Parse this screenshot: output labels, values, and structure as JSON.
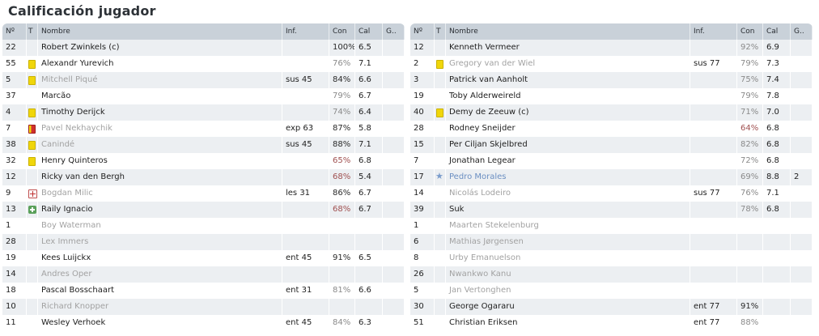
{
  "title": "Calificación jugador",
  "columns": {
    "num": "Nº",
    "t": "T",
    "name": "Nombre",
    "inf": "Inf.",
    "con": "Con",
    "cal": "Cal",
    "g": "G.."
  },
  "left": [
    {
      "num": "22",
      "icon": "",
      "name": "Robert Zwinkels (c)",
      "inf": "",
      "con": "100%",
      "cal": "6.5",
      "g": "",
      "style": "",
      "con_style": "hi"
    },
    {
      "num": "55",
      "icon": "yellow-card",
      "name": "Alexandr Yurevich",
      "inf": "",
      "con": "76%",
      "cal": "7.1",
      "g": "",
      "style": "",
      "con_style": ""
    },
    {
      "num": "5",
      "icon": "yellow-card",
      "name": "Mitchell Piqué",
      "inf": "sus 45",
      "con": "84%",
      "cal": "6.6",
      "g": "",
      "style": "dim",
      "con_style": "hi"
    },
    {
      "num": "37",
      "icon": "",
      "name": "Marcão",
      "inf": "",
      "con": "79%",
      "cal": "6.7",
      "g": "",
      "style": "",
      "con_style": ""
    },
    {
      "num": "4",
      "icon": "yellow-card",
      "name": "Timothy Derijck",
      "inf": "",
      "con": "74%",
      "cal": "6.4",
      "g": "",
      "style": "",
      "con_style": ""
    },
    {
      "num": "7",
      "icon": "red-card",
      "name": "Pavel Nekhaychik",
      "inf": "exp 63",
      "con": "87%",
      "cal": "5.8",
      "g": "",
      "style": "dim",
      "con_style": "hi"
    },
    {
      "num": "38",
      "icon": "yellow-card",
      "name": "Canindé",
      "inf": "sus 45",
      "con": "88%",
      "cal": "7.1",
      "g": "",
      "style": "dim",
      "con_style": "hi"
    },
    {
      "num": "32",
      "icon": "yellow-card",
      "name": "Henry Quinteros",
      "inf": "",
      "con": "65%",
      "cal": "6.8",
      "g": "",
      "style": "",
      "con_style": "low"
    },
    {
      "num": "12",
      "icon": "",
      "name": "Ricky van den Bergh",
      "inf": "",
      "con": "68%",
      "cal": "5.4",
      "g": "",
      "style": "",
      "con_style": "low"
    },
    {
      "num": "9",
      "icon": "injury",
      "name": "Bogdan Milic",
      "inf": "les 31",
      "con": "86%",
      "cal": "6.7",
      "g": "",
      "style": "dim",
      "con_style": "hi"
    },
    {
      "num": "13",
      "icon": "sub-in",
      "name": "Raily Ignacio",
      "inf": "",
      "con": "68%",
      "cal": "6.7",
      "g": "",
      "style": "",
      "con_style": "low"
    },
    {
      "num": "1",
      "icon": "",
      "name": "Boy Waterman",
      "inf": "",
      "con": "",
      "cal": "",
      "g": "",
      "style": "dim",
      "con_style": ""
    },
    {
      "num": "28",
      "icon": "",
      "name": "Lex Immers",
      "inf": "",
      "con": "",
      "cal": "",
      "g": "",
      "style": "dim",
      "con_style": ""
    },
    {
      "num": "19",
      "icon": "",
      "name": "Kees Luijckx",
      "inf": "ent 45",
      "con": "91%",
      "cal": "6.5",
      "g": "",
      "style": "",
      "con_style": "hi"
    },
    {
      "num": "14",
      "icon": "",
      "name": "Andres Oper",
      "inf": "",
      "con": "",
      "cal": "",
      "g": "",
      "style": "dim",
      "con_style": ""
    },
    {
      "num": "18",
      "icon": "",
      "name": "Pascal Bosschaart",
      "inf": "ent 31",
      "con": "81%",
      "cal": "6.6",
      "g": "",
      "style": "",
      "con_style": ""
    },
    {
      "num": "10",
      "icon": "",
      "name": "Richard Knopper",
      "inf": "",
      "con": "",
      "cal": "",
      "g": "",
      "style": "dim",
      "con_style": ""
    },
    {
      "num": "11",
      "icon": "",
      "name": "Wesley Verhoek",
      "inf": "ent 45",
      "con": "84%",
      "cal": "6.3",
      "g": "",
      "style": "",
      "con_style": ""
    }
  ],
  "right": [
    {
      "num": "12",
      "icon": "",
      "name": "Kenneth Vermeer",
      "inf": "",
      "con": "92%",
      "cal": "6.9",
      "g": "",
      "style": "",
      "con_style": ""
    },
    {
      "num": "2",
      "icon": "yellow-card",
      "name": "Gregory van der Wiel",
      "inf": "sus 77",
      "con": "79%",
      "cal": "7.3",
      "g": "",
      "style": "dim",
      "con_style": ""
    },
    {
      "num": "3",
      "icon": "",
      "name": "Patrick van Aanholt",
      "inf": "",
      "con": "75%",
      "cal": "7.4",
      "g": "",
      "style": "",
      "con_style": ""
    },
    {
      "num": "19",
      "icon": "",
      "name": "Toby Alderweireld",
      "inf": "",
      "con": "79%",
      "cal": "7.8",
      "g": "",
      "style": "",
      "con_style": ""
    },
    {
      "num": "40",
      "icon": "yellow-card",
      "name": "Demy de Zeeuw (c)",
      "inf": "",
      "con": "71%",
      "cal": "7.0",
      "g": "",
      "style": "",
      "con_style": ""
    },
    {
      "num": "28",
      "icon": "",
      "name": "Rodney Sneijder",
      "inf": "",
      "con": "64%",
      "cal": "6.8",
      "g": "",
      "style": "",
      "con_style": "low"
    },
    {
      "num": "15",
      "icon": "",
      "name": "Per Ciljan Skjelbred",
      "inf": "",
      "con": "82%",
      "cal": "6.8",
      "g": "",
      "style": "",
      "con_style": ""
    },
    {
      "num": "7",
      "icon": "",
      "name": "Jonathan Legear",
      "inf": "",
      "con": "72%",
      "cal": "6.8",
      "g": "",
      "style": "",
      "con_style": ""
    },
    {
      "num": "17",
      "icon": "star",
      "name": "Pedro Morales",
      "inf": "",
      "con": "69%",
      "cal": "8.8",
      "g": "2",
      "style": "blue",
      "con_style": ""
    },
    {
      "num": "14",
      "icon": "",
      "name": "Nicolás Lodeiro",
      "inf": "sus 77",
      "con": "76%",
      "cal": "7.1",
      "g": "",
      "style": "dim",
      "con_style": ""
    },
    {
      "num": "39",
      "icon": "",
      "name": "Suk",
      "inf": "",
      "con": "78%",
      "cal": "6.8",
      "g": "",
      "style": "",
      "con_style": ""
    },
    {
      "num": "1",
      "icon": "",
      "name": "Maarten Stekelenburg",
      "inf": "",
      "con": "",
      "cal": "",
      "g": "",
      "style": "dim",
      "con_style": ""
    },
    {
      "num": "6",
      "icon": "",
      "name": "Mathias Jørgensen",
      "inf": "",
      "con": "",
      "cal": "",
      "g": "",
      "style": "dim",
      "con_style": ""
    },
    {
      "num": "8",
      "icon": "",
      "name": "Urby Emanuelson",
      "inf": "",
      "con": "",
      "cal": "",
      "g": "",
      "style": "dim",
      "con_style": ""
    },
    {
      "num": "26",
      "icon": "",
      "name": "Nwankwo Kanu",
      "inf": "",
      "con": "",
      "cal": "",
      "g": "",
      "style": "dim",
      "con_style": ""
    },
    {
      "num": "5",
      "icon": "",
      "name": "Jan Vertonghen",
      "inf": "",
      "con": "",
      "cal": "",
      "g": "",
      "style": "dim",
      "con_style": ""
    },
    {
      "num": "30",
      "icon": "",
      "name": "George Ogararu",
      "inf": "ent 77",
      "con": "91%",
      "cal": "",
      "g": "",
      "style": "",
      "con_style": "hi"
    },
    {
      "num": "51",
      "icon": "",
      "name": "Christian Eriksen",
      "inf": "ent 77",
      "con": "88%",
      "cal": "",
      "g": "",
      "style": "",
      "con_style": ""
    }
  ]
}
